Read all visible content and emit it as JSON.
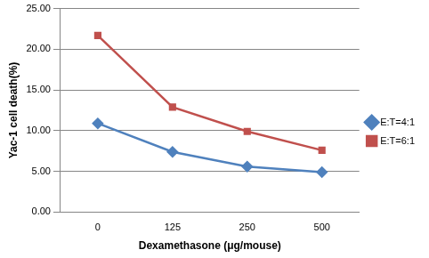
{
  "chart_data": {
    "type": "line",
    "x_label": "Dexamethasone (μg/mouse)",
    "y_label": "Yac-1 cell death(%)",
    "categories": [
      "0",
      "125",
      "250",
      "500"
    ],
    "series": [
      {
        "name": "E:T=4:1",
        "color": "#4f81bd",
        "marker": "diamond",
        "values": [
          10.9,
          7.4,
          5.6,
          4.9
        ]
      },
      {
        "name": "E:T=6:1",
        "color": "#c0504d",
        "marker": "square",
        "values": [
          21.7,
          12.9,
          9.9,
          7.6
        ]
      }
    ],
    "ylim": [
      0,
      25
    ],
    "yticks": [
      {
        "value": 0,
        "label": "0.00"
      },
      {
        "value": 5,
        "label": "5.00"
      },
      {
        "value": 10,
        "label": "10.00"
      },
      {
        "value": 15,
        "label": "15.00"
      },
      {
        "value": 20,
        "label": "20.00"
      },
      {
        "value": 25,
        "label": "25.00"
      }
    ],
    "grid": true,
    "legend": "right"
  }
}
